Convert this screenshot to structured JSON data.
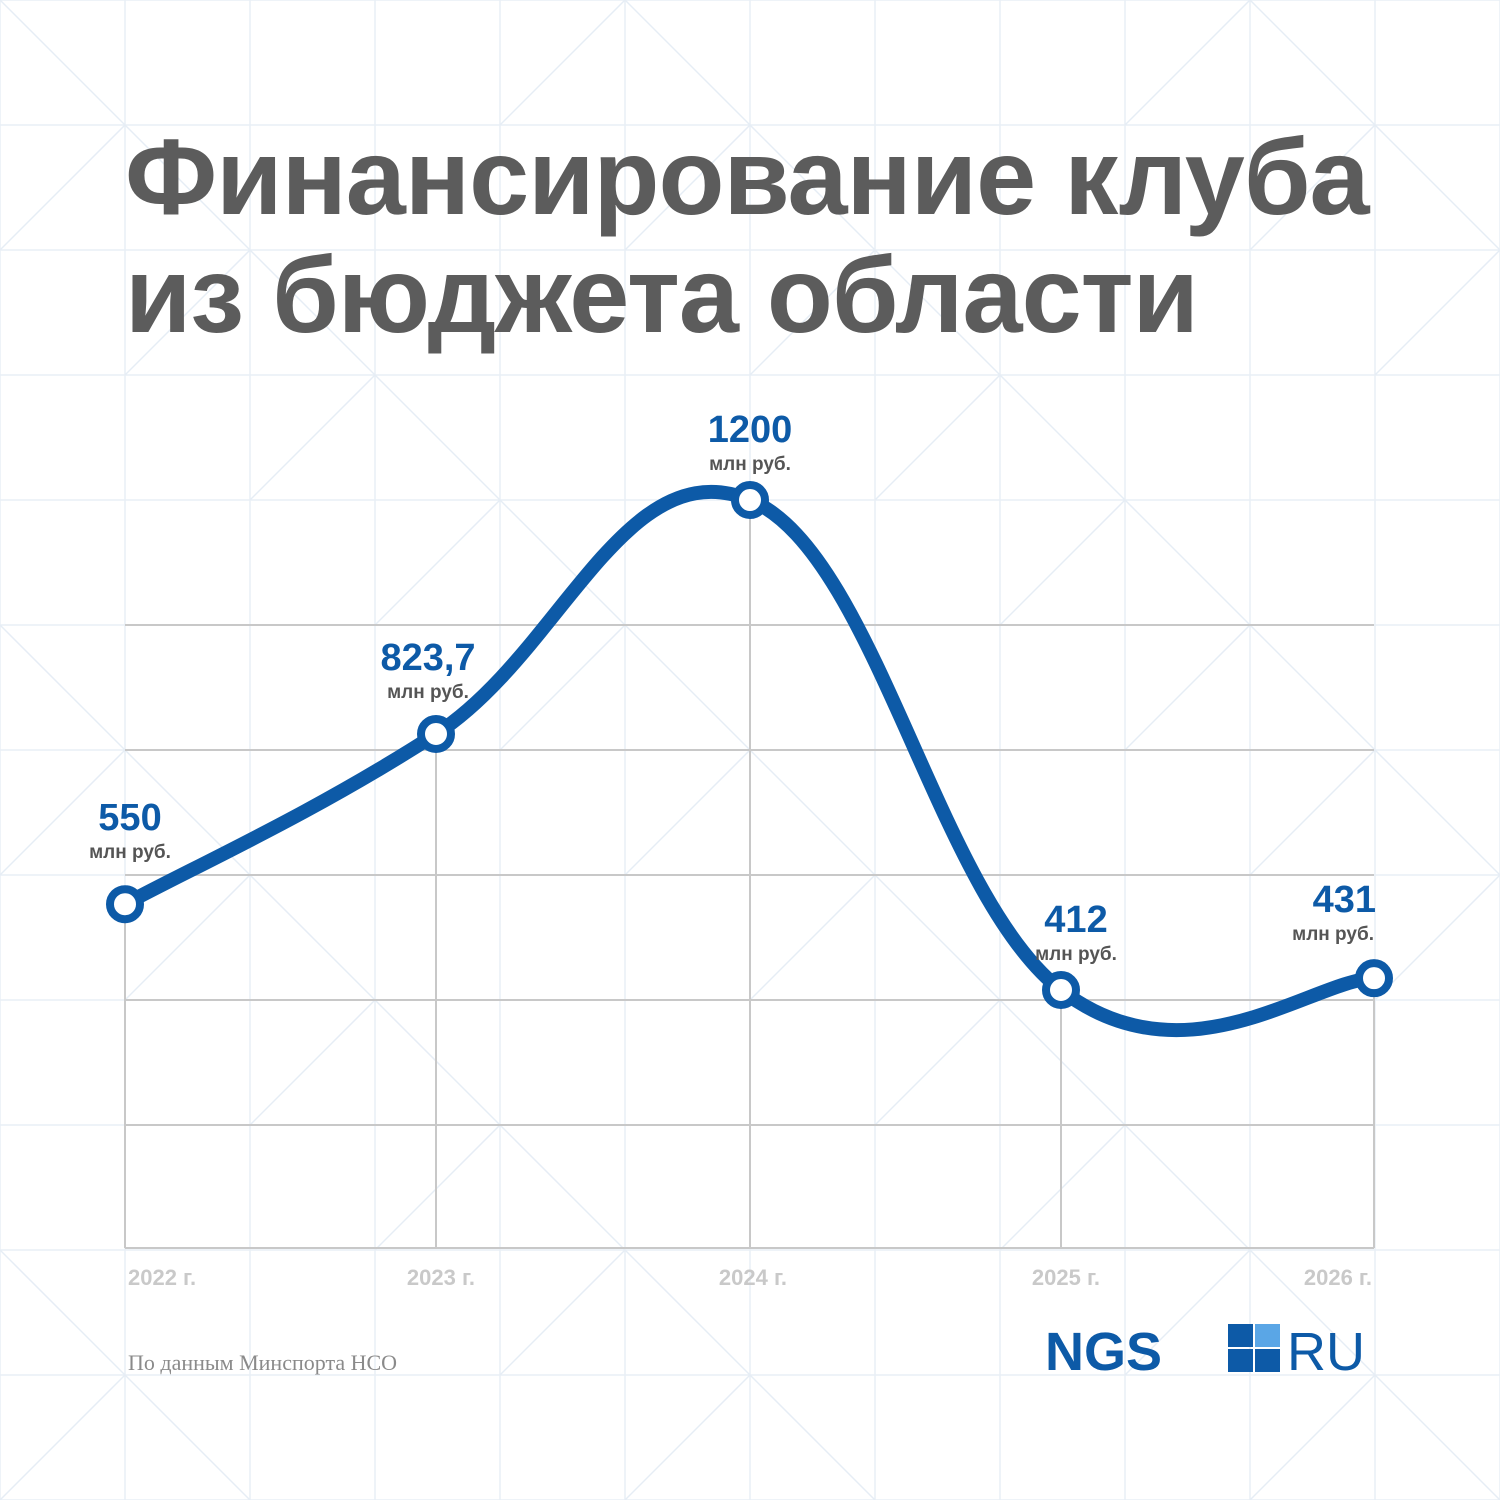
{
  "title_lines": [
    "Финансирование клуба",
    "из бюджета области"
  ],
  "source": "По данным Минспорта НСО",
  "logo": {
    "left": "NGS",
    "right": "RU"
  },
  "colors": {
    "line": "#0d5aa7",
    "title": "#5c5c5c",
    "grid": "#c8c8c8",
    "tick": "#c9c9c9"
  },
  "chart_data": {
    "type": "line",
    "categories": [
      "2022 г.",
      "2023 г.",
      "2024 г.",
      "2025 г.",
      "2026 г."
    ],
    "series": [
      {
        "values": [
          550,
          823.7,
          1200,
          412,
          431
        ]
      }
    ],
    "data_labels": [
      "550",
      "823,7",
      "1200",
      "412",
      "431"
    ],
    "unit_label": "млн руб.",
    "smooth": true,
    "grid": true,
    "legend": "none"
  }
}
